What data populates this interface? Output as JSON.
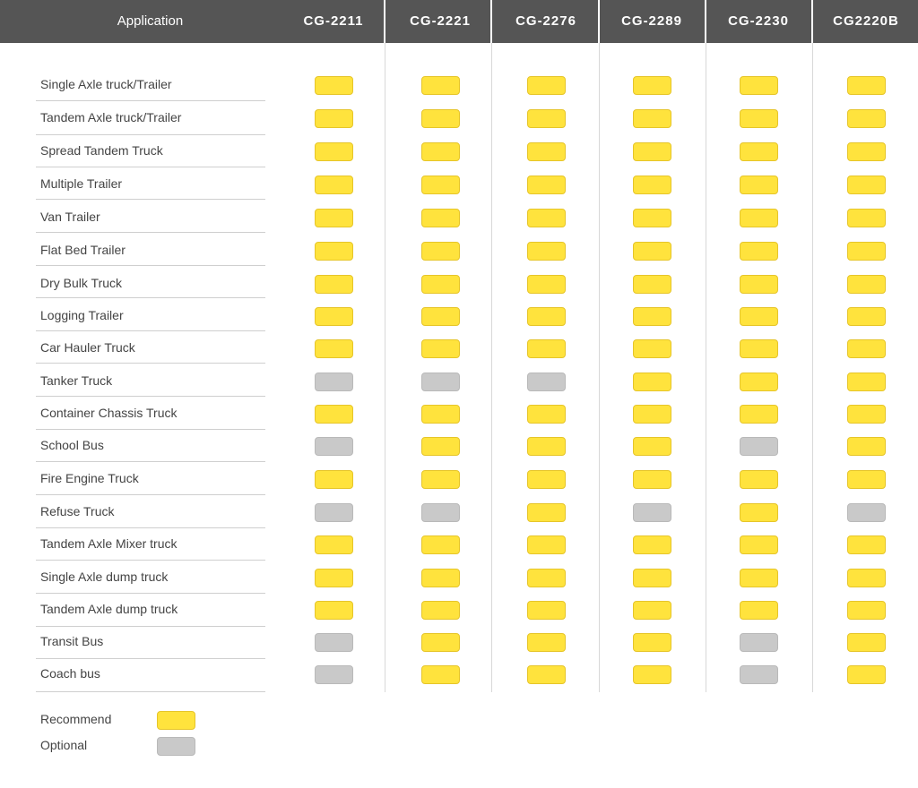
{
  "header": {
    "application_label": "Application",
    "models": [
      "CG-2211",
      "CG-2221",
      "CG-2276",
      "CG-2289",
      "CG-2230",
      "CG2220B"
    ]
  },
  "rows": [
    {
      "label": "Single Axle truck/Trailer",
      "values": [
        "R",
        "R",
        "R",
        "R",
        "R",
        "R"
      ]
    },
    {
      "label": "Tandem Axle truck/Trailer",
      "values": [
        "R",
        "R",
        "R",
        "R",
        "R",
        "R"
      ]
    },
    {
      "label": "Spread Tandem Truck",
      "values": [
        "R",
        "R",
        "R",
        "R",
        "R",
        "R"
      ]
    },
    {
      "label": "Multiple Trailer",
      "values": [
        "R",
        "R",
        "R",
        "R",
        "R",
        "R"
      ]
    },
    {
      "label": "Van Trailer",
      "values": [
        "R",
        "R",
        "R",
        "R",
        "R",
        "R"
      ]
    },
    {
      "label": "Flat Bed Trailer",
      "values": [
        "R",
        "R",
        "R",
        "R",
        "R",
        "R"
      ]
    },
    {
      "label": "Dry Bulk Truck",
      "values": [
        "R",
        "R",
        "R",
        "R",
        "R",
        "R"
      ]
    },
    {
      "label": "Logging Trailer",
      "values": [
        "R",
        "R",
        "R",
        "R",
        "R",
        "R"
      ]
    },
    {
      "label": "Car Hauler Truck",
      "values": [
        "R",
        "R",
        "R",
        "R",
        "R",
        "R"
      ]
    },
    {
      "label": "Tanker Truck",
      "values": [
        "O",
        "O",
        "O",
        "R",
        "R",
        "R"
      ]
    },
    {
      "label": "Container Chassis Truck",
      "values": [
        "R",
        "R",
        "R",
        "R",
        "R",
        "R"
      ]
    },
    {
      "label": "School Bus",
      "values": [
        "O",
        "R",
        "R",
        "R",
        "O",
        "R"
      ]
    },
    {
      "label": "Fire Engine Truck",
      "values": [
        "R",
        "R",
        "R",
        "R",
        "R",
        "R"
      ]
    },
    {
      "label": "Refuse Truck",
      "values": [
        "O",
        "O",
        "R",
        "O",
        "R",
        "O"
      ]
    },
    {
      "label": "Tandem Axle Mixer truck",
      "values": [
        "R",
        "R",
        "R",
        "R",
        "R",
        "R"
      ]
    },
    {
      "label": "Single Axle dump truck",
      "values": [
        "R",
        "R",
        "R",
        "R",
        "R",
        "R"
      ]
    },
    {
      "label": "Tandem Axle dump truck",
      "values": [
        "R",
        "R",
        "R",
        "R",
        "R",
        "R"
      ]
    },
    {
      "label": "Transit Bus",
      "values": [
        "O",
        "R",
        "R",
        "R",
        "O",
        "R"
      ]
    },
    {
      "label": "Coach bus",
      "values": [
        "O",
        "R",
        "R",
        "R",
        "O",
        "R"
      ]
    }
  ],
  "legend": {
    "recommend_label": "Recommend",
    "optional_label": "Optional"
  },
  "colors": {
    "header_bg": "#555555",
    "recommend": "#ffe33d",
    "optional": "#c9c9c9"
  }
}
